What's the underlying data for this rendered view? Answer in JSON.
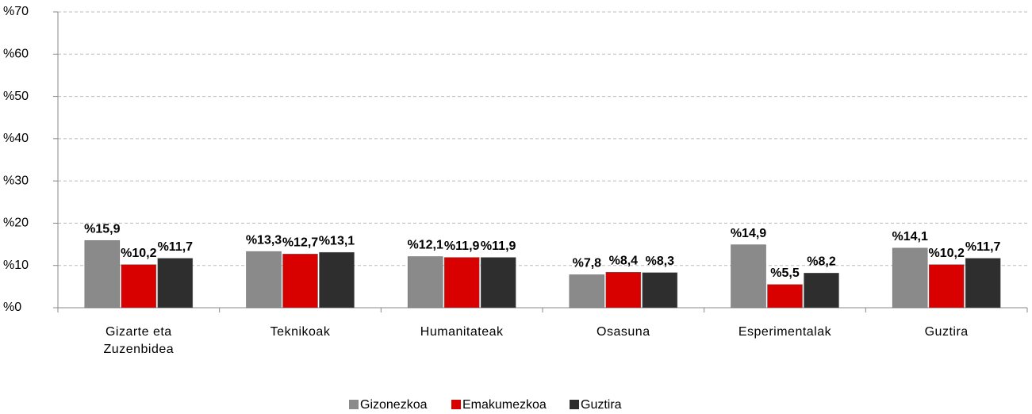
{
  "chart_data": {
    "type": "bar",
    "categories": [
      "Gizarte eta Zuzenbidea",
      "Teknikoak",
      "Humanitateak",
      "Osasuna",
      "Esperimentalak",
      "Guztira"
    ],
    "series": [
      {
        "name": "Gizonezkoa",
        "color": "#8a8a8a",
        "values": [
          15.9,
          13.3,
          12.1,
          7.8,
          14.9,
          14.1
        ],
        "value_labels": [
          "%15,9",
          "%13,3",
          "%12,1",
          "%7,8",
          "%14,9",
          "%14,1"
        ]
      },
      {
        "name": "Emakumezkoa",
        "color": "#d90000",
        "values": [
          10.2,
          12.7,
          11.9,
          8.4,
          5.5,
          10.2
        ],
        "value_labels": [
          "%10,2",
          "%12,7",
          "%11,9",
          "%8,4",
          "%5,5",
          "%10,2"
        ]
      },
      {
        "name": "Guztira",
        "color": "#2e2e2e",
        "values": [
          11.7,
          13.1,
          11.9,
          8.3,
          8.2,
          11.7
        ],
        "value_labels": [
          "%11,7",
          "%13,1",
          "%11,9",
          "%8,3",
          "%8,2",
          "%11,7"
        ]
      }
    ],
    "ylim": [
      0,
      70
    ],
    "yticks": [
      {
        "value": 0,
        "label": "%0"
      },
      {
        "value": 10,
        "label": "%10"
      },
      {
        "value": 20,
        "label": "%20"
      },
      {
        "value": 30,
        "label": "%30"
      },
      {
        "value": 40,
        "label": "%40"
      },
      {
        "value": 50,
        "label": "%50"
      },
      {
        "value": 60,
        "label": "%60"
      },
      {
        "value": 70,
        "label": "%70"
      }
    ],
    "grid": true,
    "legend": "bottom"
  }
}
